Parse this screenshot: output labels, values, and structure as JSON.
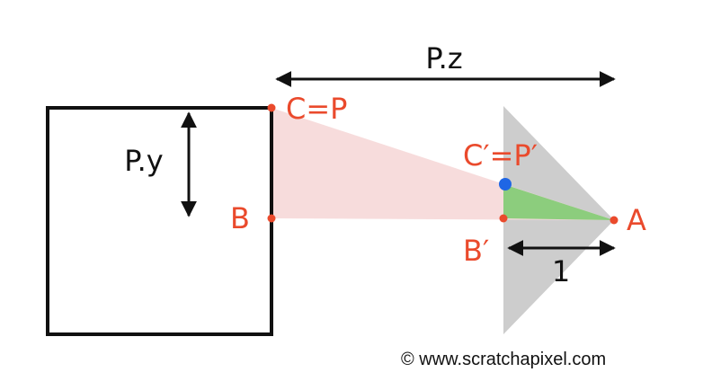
{
  "colors": {
    "point_red": "#ea4a2c",
    "blue_point": "#1f66e5",
    "pink_triangle": "#f7dcdc",
    "green_triangle": "#8ccd7d",
    "gray_frustum": "#cdcdcd",
    "stroke": "#111111"
  },
  "labels": {
    "pz": "P.z",
    "py": "P.y",
    "c_eq_p": "C=P",
    "b": "B",
    "c_prime_eq_p_prime": "C′=P′",
    "b_prime": "B′",
    "a": "A",
    "one": "1"
  },
  "credit": "© www.scratchapixel.com"
}
